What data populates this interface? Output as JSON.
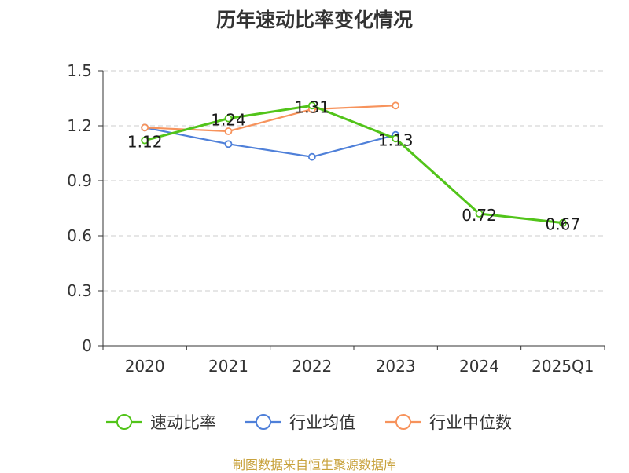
{
  "chart_data": {
    "type": "line",
    "title": "历年速动比率变化情况",
    "categories": [
      "2020",
      "2021",
      "2022",
      "2023",
      "2024",
      "2025Q1"
    ],
    "ylim": [
      0,
      1.5
    ],
    "yticks": [
      "0",
      "0.3",
      "0.6",
      "0.9",
      "1.2",
      "1.5"
    ],
    "grid": true,
    "legend_position": "bottom",
    "series": [
      {
        "name": "速动比率",
        "color": "#52c41a",
        "values": [
          1.12,
          1.24,
          1.31,
          1.13,
          0.72,
          0.67
        ],
        "labels": [
          "1.12",
          "1.24",
          "1.31",
          "1.13",
          "0.72",
          "0.67"
        ]
      },
      {
        "name": "行业均值",
        "color": "#4f80d9",
        "values": [
          1.19,
          1.1,
          1.03,
          1.15,
          null,
          null
        ]
      },
      {
        "name": "行业中位数",
        "color": "#f7935c",
        "values": [
          1.19,
          1.17,
          1.29,
          1.31,
          null,
          null
        ]
      }
    ]
  },
  "source_note": "制图数据来自恒生聚源数据库"
}
